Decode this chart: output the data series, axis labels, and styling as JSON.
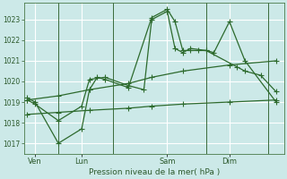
{
  "bg_color": "#cce9e8",
  "grid_color": "#b0d8d8",
  "line_color": "#2d6a2d",
  "xlabel": "Pression niveau de la mer( hPa )",
  "ylim": [
    1016.5,
    1023.8
  ],
  "yticks": [
    1017,
    1018,
    1019,
    1020,
    1021,
    1022,
    1023
  ],
  "day_labels": [
    "Ven",
    "Lun",
    "Sam",
    "Dim"
  ],
  "day_positions": [
    0.5,
    3.5,
    9.0,
    13.0
  ],
  "vline_positions": [
    2.0,
    5.5,
    11.5,
    15.5
  ],
  "xlim": [
    -0.2,
    16.5
  ],
  "series1_x": [
    0.0,
    0.5,
    2.0,
    3.5,
    4.0,
    4.5,
    5.0,
    6.5,
    8.0,
    9.0,
    9.5,
    10.0,
    10.5,
    11.0,
    11.5,
    12.0,
    13.0,
    14.0,
    16.0
  ],
  "series1_y": [
    1019.2,
    1019.0,
    1017.0,
    1017.7,
    1019.6,
    1020.2,
    1020.1,
    1019.7,
    1023.1,
    1023.5,
    1022.9,
    1021.5,
    1021.5,
    1021.5,
    1021.5,
    1021.4,
    1022.9,
    1021.0,
    1019.0
  ],
  "series2_x": [
    0.0,
    0.5,
    2.0,
    3.5,
    4.0,
    5.0,
    6.5,
    7.5,
    8.0,
    9.0,
    9.5,
    10.0,
    10.5,
    11.5,
    13.5,
    14.0,
    15.0,
    16.0
  ],
  "series2_y": [
    1019.1,
    1018.9,
    1018.1,
    1018.8,
    1020.1,
    1020.2,
    1019.8,
    1019.6,
    1023.0,
    1023.4,
    1021.6,
    1021.4,
    1021.6,
    1021.5,
    1020.7,
    1020.5,
    1020.3,
    1019.5
  ],
  "series3_x": [
    0.0,
    2.0,
    4.0,
    6.5,
    8.0,
    10.0,
    13.0,
    16.0
  ],
  "series3_y": [
    1019.1,
    1019.3,
    1019.6,
    1019.9,
    1020.2,
    1020.5,
    1020.8,
    1021.0
  ],
  "series4_x": [
    0.0,
    2.0,
    4.0,
    6.5,
    8.0,
    10.0,
    13.0,
    16.0
  ],
  "series4_y": [
    1018.4,
    1018.5,
    1018.6,
    1018.7,
    1018.8,
    1018.9,
    1019.0,
    1019.1
  ]
}
